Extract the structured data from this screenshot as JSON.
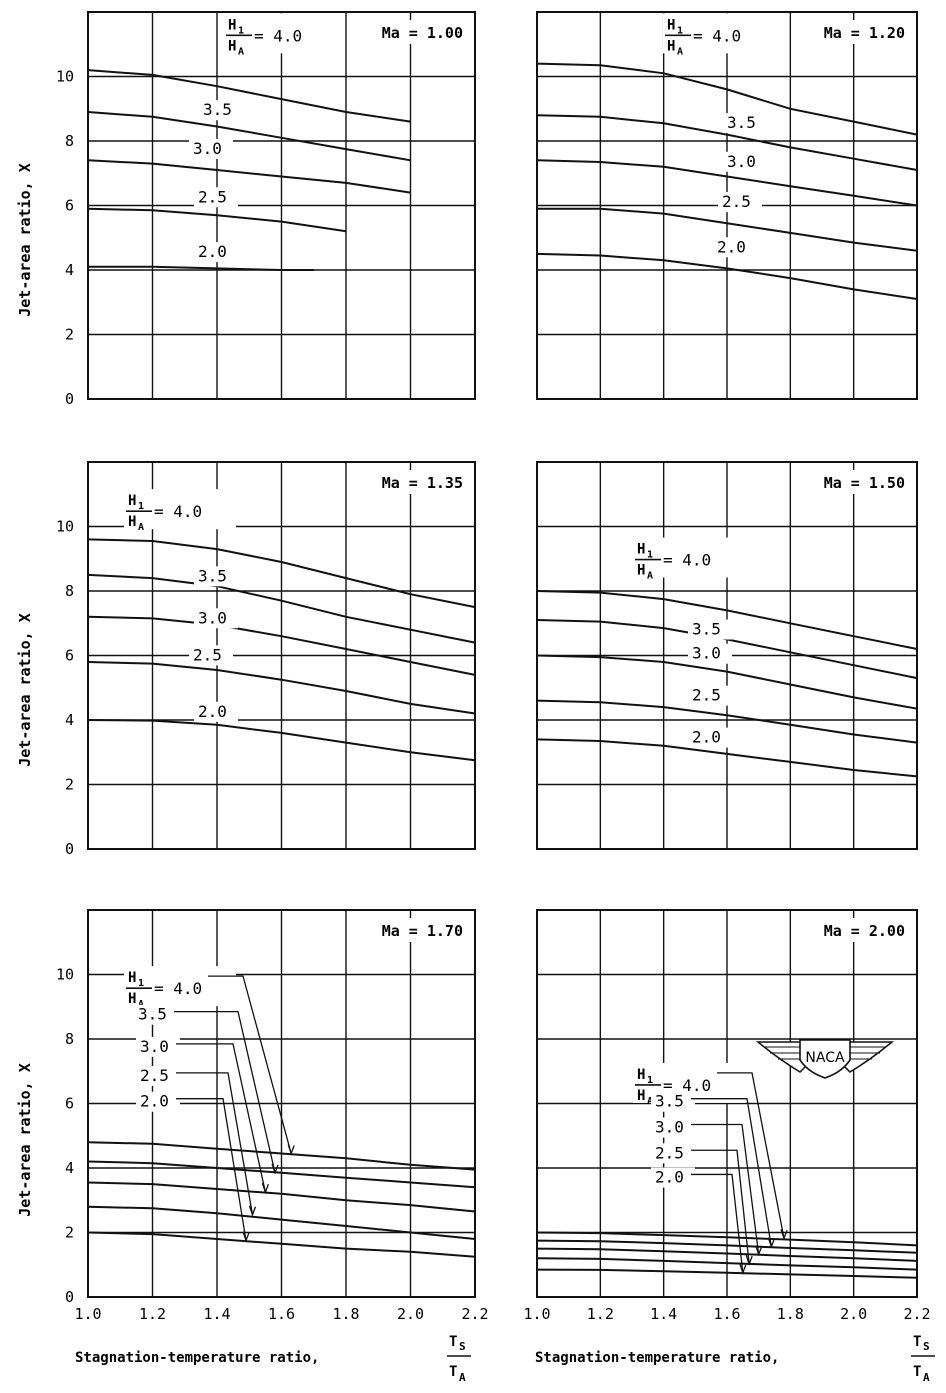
{
  "figure": {
    "y_axis_label": "Jet-area ratio, X",
    "x_axis_label": "Stagnation-temperature ratio,",
    "x_fraction": {
      "numerator": "T",
      "numerator_sub": "S",
      "denominator": "T",
      "denominator_sub": "A"
    },
    "param_fraction": {
      "numerator": "H",
      "numerator_sub": "1",
      "denominator": "H",
      "denominator_sub": "A"
    },
    "logo_text": "NACA",
    "x_ticks": [
      "1.0",
      "1.2",
      "1.4",
      "1.6",
      "1.8",
      "2.0",
      "2.2"
    ],
    "y_ticks": [
      "0",
      "2",
      "4",
      "6",
      "8",
      "10"
    ]
  },
  "chart_data": [
    {
      "type": "line",
      "mach_label": "Ma = 1.00",
      "xlim": [
        1.0,
        2.2
      ],
      "ylim": [
        0,
        12
      ],
      "grid": true,
      "series": [
        {
          "name": "4.0",
          "x": [
            1.0,
            1.2,
            1.4,
            1.6,
            1.8,
            2.0
          ],
          "y": [
            10.2,
            10.05,
            9.7,
            9.3,
            8.9,
            8.6
          ]
        },
        {
          "name": "3.5",
          "x": [
            1.0,
            1.2,
            1.4,
            1.6,
            1.8,
            2.0
          ],
          "y": [
            8.9,
            8.75,
            8.45,
            8.1,
            7.75,
            7.4
          ]
        },
        {
          "name": "3.0",
          "x": [
            1.0,
            1.2,
            1.4,
            1.6,
            1.8,
            2.0
          ],
          "y": [
            7.4,
            7.3,
            7.1,
            6.9,
            6.7,
            6.4
          ]
        },
        {
          "name": "2.5",
          "x": [
            1.0,
            1.2,
            1.4,
            1.6,
            1.8
          ],
          "y": [
            5.9,
            5.85,
            5.7,
            5.5,
            5.2
          ]
        },
        {
          "name": "2.0",
          "x": [
            1.0,
            1.2,
            1.4,
            1.6,
            1.7
          ],
          "y": [
            4.1,
            4.1,
            4.05,
            4.0,
            4.0
          ]
        }
      ]
    },
    {
      "type": "line",
      "mach_label": "Ma = 1.20",
      "xlim": [
        1.0,
        2.2
      ],
      "ylim": [
        0,
        12
      ],
      "grid": true,
      "series": [
        {
          "name": "4.0",
          "x": [
            1.0,
            1.2,
            1.4,
            1.6,
            1.8,
            2.0,
            2.2
          ],
          "y": [
            10.4,
            10.35,
            10.1,
            9.6,
            9.0,
            8.6,
            8.2
          ]
        },
        {
          "name": "3.5",
          "x": [
            1.0,
            1.2,
            1.4,
            1.6,
            1.8,
            2.0,
            2.2
          ],
          "y": [
            8.8,
            8.75,
            8.55,
            8.2,
            7.8,
            7.45,
            7.1
          ]
        },
        {
          "name": "3.0",
          "x": [
            1.0,
            1.2,
            1.4,
            1.6,
            1.8,
            2.0,
            2.2
          ],
          "y": [
            7.4,
            7.35,
            7.2,
            6.9,
            6.6,
            6.3,
            6.0
          ]
        },
        {
          "name": "2.5",
          "x": [
            1.0,
            1.2,
            1.4,
            1.6,
            1.8,
            2.0,
            2.2
          ],
          "y": [
            5.9,
            5.9,
            5.75,
            5.45,
            5.15,
            4.85,
            4.6
          ]
        },
        {
          "name": "2.0",
          "x": [
            1.0,
            1.2,
            1.4,
            1.6,
            1.8,
            2.0,
            2.2
          ],
          "y": [
            4.5,
            4.45,
            4.3,
            4.05,
            3.75,
            3.4,
            3.1
          ]
        }
      ]
    },
    {
      "type": "line",
      "mach_label": "Ma = 1.35",
      "xlim": [
        1.0,
        2.2
      ],
      "ylim": [
        0,
        12
      ],
      "grid": true,
      "series": [
        {
          "name": "4.0",
          "x": [
            1.0,
            1.2,
            1.4,
            1.6,
            1.8,
            2.0,
            2.2
          ],
          "y": [
            9.6,
            9.55,
            9.3,
            8.9,
            8.4,
            7.9,
            7.5
          ]
        },
        {
          "name": "3.5",
          "x": [
            1.0,
            1.2,
            1.4,
            1.6,
            1.8,
            2.0,
            2.2
          ],
          "y": [
            8.5,
            8.4,
            8.15,
            7.7,
            7.2,
            6.8,
            6.4
          ]
        },
        {
          "name": "3.0",
          "x": [
            1.0,
            1.2,
            1.4,
            1.6,
            1.8,
            2.0,
            2.2
          ],
          "y": [
            7.2,
            7.15,
            6.95,
            6.6,
            6.2,
            5.8,
            5.4
          ]
        },
        {
          "name": "2.5",
          "x": [
            1.0,
            1.2,
            1.4,
            1.6,
            1.8,
            2.0,
            2.2
          ],
          "y": [
            5.8,
            5.75,
            5.55,
            5.25,
            4.9,
            4.5,
            4.2
          ]
        },
        {
          "name": "2.0",
          "x": [
            1.0,
            1.2,
            1.4,
            1.6,
            1.8,
            2.0,
            2.2
          ],
          "y": [
            4.0,
            3.98,
            3.85,
            3.6,
            3.3,
            3.0,
            2.75
          ]
        }
      ]
    },
    {
      "type": "line",
      "mach_label": "Ma = 1.50",
      "xlim": [
        1.0,
        2.2
      ],
      "ylim": [
        0,
        12
      ],
      "grid": true,
      "series": [
        {
          "name": "4.0",
          "x": [
            1.0,
            1.2,
            1.4,
            1.6,
            1.8,
            2.0,
            2.2
          ],
          "y": [
            8.0,
            7.95,
            7.75,
            7.4,
            7.0,
            6.6,
            6.2
          ]
        },
        {
          "name": "3.5",
          "x": [
            1.0,
            1.2,
            1.4,
            1.6,
            1.8,
            2.0,
            2.2
          ],
          "y": [
            7.1,
            7.05,
            6.85,
            6.5,
            6.1,
            5.7,
            5.3
          ]
        },
        {
          "name": "3.0",
          "x": [
            1.0,
            1.2,
            1.4,
            1.6,
            1.8,
            2.0,
            2.2
          ],
          "y": [
            6.0,
            5.95,
            5.8,
            5.5,
            5.1,
            4.7,
            4.35
          ]
        },
        {
          "name": "2.5",
          "x": [
            1.0,
            1.2,
            1.4,
            1.6,
            1.8,
            2.0,
            2.2
          ],
          "y": [
            4.6,
            4.55,
            4.4,
            4.15,
            3.85,
            3.55,
            3.3
          ]
        },
        {
          "name": "2.0",
          "x": [
            1.0,
            1.2,
            1.4,
            1.6,
            1.8,
            2.0,
            2.2
          ],
          "y": [
            3.4,
            3.35,
            3.2,
            2.95,
            2.7,
            2.45,
            2.25
          ]
        }
      ]
    },
    {
      "type": "line",
      "mach_label": "Ma = 1.70",
      "xlim": [
        1.0,
        2.2
      ],
      "ylim": [
        0,
        12
      ],
      "grid": true,
      "series": [
        {
          "name": "4.0",
          "x": [
            1.0,
            1.2,
            1.4,
            1.6,
            1.8,
            2.0,
            2.2
          ],
          "y": [
            4.8,
            4.75,
            4.6,
            4.45,
            4.3,
            4.1,
            3.95
          ]
        },
        {
          "name": "3.5",
          "x": [
            1.0,
            1.2,
            1.4,
            1.6,
            1.8,
            2.0,
            2.2
          ],
          "y": [
            4.2,
            4.15,
            4.0,
            3.85,
            3.7,
            3.55,
            3.4
          ]
        },
        {
          "name": "3.0",
          "x": [
            1.0,
            1.2,
            1.4,
            1.6,
            1.8,
            2.0,
            2.2
          ],
          "y": [
            3.55,
            3.5,
            3.35,
            3.2,
            3.0,
            2.85,
            2.65
          ]
        },
        {
          "name": "2.5",
          "x": [
            1.0,
            1.2,
            1.4,
            1.6,
            1.8,
            2.0,
            2.2
          ],
          "y": [
            2.8,
            2.75,
            2.6,
            2.4,
            2.2,
            2.0,
            1.8
          ]
        },
        {
          "name": "2.0",
          "x": [
            1.0,
            1.2,
            1.4,
            1.6,
            1.8,
            2.0,
            2.2
          ],
          "y": [
            2.0,
            1.95,
            1.8,
            1.65,
            1.5,
            1.4,
            1.25
          ]
        }
      ]
    },
    {
      "type": "line",
      "mach_label": "Ma = 2.00",
      "xlim": [
        1.0,
        2.2
      ],
      "ylim": [
        0,
        12
      ],
      "grid": true,
      "series": [
        {
          "name": "4.0",
          "x": [
            1.0,
            1.2,
            1.4,
            1.6,
            1.8,
            2.0,
            2.2
          ],
          "y": [
            2.0,
            1.98,
            1.92,
            1.85,
            1.78,
            1.7,
            1.6
          ]
        },
        {
          "name": "3.5",
          "x": [
            1.0,
            1.2,
            1.4,
            1.6,
            1.8,
            2.0,
            2.2
          ],
          "y": [
            1.75,
            1.73,
            1.67,
            1.6,
            1.52,
            1.45,
            1.37
          ]
        },
        {
          "name": "3.0",
          "x": [
            1.0,
            1.2,
            1.4,
            1.6,
            1.8,
            2.0,
            2.2
          ],
          "y": [
            1.5,
            1.48,
            1.42,
            1.35,
            1.27,
            1.2,
            1.12
          ]
        },
        {
          "name": "2.5",
          "x": [
            1.0,
            1.2,
            1.4,
            1.6,
            1.8,
            2.0,
            2.2
          ],
          "y": [
            1.2,
            1.18,
            1.12,
            1.05,
            0.98,
            0.92,
            0.85
          ]
        },
        {
          "name": "2.0",
          "x": [
            1.0,
            1.2,
            1.4,
            1.6,
            1.8,
            2.0,
            2.2
          ],
          "y": [
            0.85,
            0.84,
            0.8,
            0.75,
            0.7,
            0.65,
            0.6
          ]
        }
      ]
    }
  ]
}
